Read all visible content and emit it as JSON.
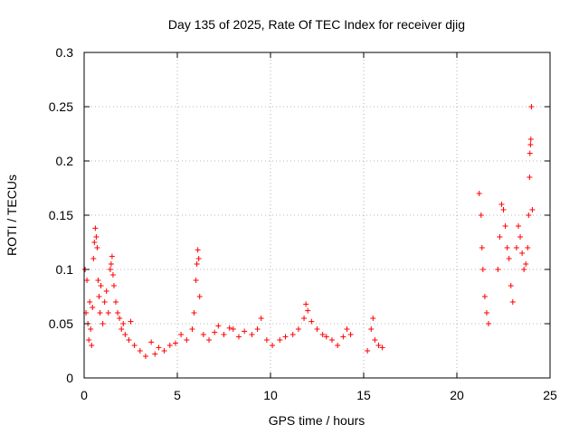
{
  "chart_data": {
    "type": "scatter",
    "title": "Day 135 of 2025, Rate Of TEC Index for receiver djig",
    "xlabel": "GPS time / hours",
    "ylabel": "ROTI / TECUs",
    "xlim": [
      0,
      25
    ],
    "ylim": [
      0,
      0.3
    ],
    "xticks": [
      0,
      5,
      10,
      15,
      20,
      25
    ],
    "xtick_labels": [
      "0",
      "5",
      "10",
      "15",
      "20",
      "25"
    ],
    "yticks": [
      0,
      0.05,
      0.1,
      0.15,
      0.2,
      0.25,
      0.3
    ],
    "ytick_labels": [
      "0",
      "0.05",
      "0.1",
      "0.15",
      "0.2",
      "0.25",
      "0.3"
    ],
    "grid": true,
    "marker": "plus",
    "color": "#ff0000",
    "series": [
      {
        "name": "ROTI",
        "points": [
          [
            0.05,
            0.1
          ],
          [
            0.1,
            0.06
          ],
          [
            0.15,
            0.09
          ],
          [
            0.2,
            0.05
          ],
          [
            0.25,
            0.035
          ],
          [
            0.3,
            0.07
          ],
          [
            0.35,
            0.045
          ],
          [
            0.4,
            0.03
          ],
          [
            0.45,
            0.065
          ],
          [
            0.5,
            0.11
          ],
          [
            0.55,
            0.125
          ],
          [
            0.6,
            0.138
          ],
          [
            0.65,
            0.13
          ],
          [
            0.7,
            0.12
          ],
          [
            0.75,
            0.09
          ],
          [
            0.8,
            0.075
          ],
          [
            0.85,
            0.06
          ],
          [
            0.9,
            0.085
          ],
          [
            1.0,
            0.05
          ],
          [
            1.1,
            0.07
          ],
          [
            1.2,
            0.08
          ],
          [
            1.3,
            0.06
          ],
          [
            1.4,
            0.1
          ],
          [
            1.45,
            0.105
          ],
          [
            1.5,
            0.112
          ],
          [
            1.55,
            0.095
          ],
          [
            1.6,
            0.085
          ],
          [
            1.7,
            0.07
          ],
          [
            1.8,
            0.06
          ],
          [
            1.9,
            0.055
          ],
          [
            2.0,
            0.045
          ],
          [
            2.1,
            0.05
          ],
          [
            2.2,
            0.04
          ],
          [
            2.4,
            0.035
          ],
          [
            2.5,
            0.052
          ],
          [
            2.7,
            0.03
          ],
          [
            3.0,
            0.025
          ],
          [
            3.3,
            0.02
          ],
          [
            3.6,
            0.033
          ],
          [
            3.8,
            0.022
          ],
          [
            4.0,
            0.028
          ],
          [
            4.3,
            0.025
          ],
          [
            4.6,
            0.03
          ],
          [
            4.9,
            0.032
          ],
          [
            5.2,
            0.04
          ],
          [
            5.5,
            0.035
          ],
          [
            5.8,
            0.045
          ],
          [
            5.9,
            0.06
          ],
          [
            6.0,
            0.09
          ],
          [
            6.05,
            0.105
          ],
          [
            6.1,
            0.118
          ],
          [
            6.15,
            0.11
          ],
          [
            6.2,
            0.075
          ],
          [
            6.4,
            0.04
          ],
          [
            6.7,
            0.035
          ],
          [
            7.0,
            0.042
          ],
          [
            7.2,
            0.048
          ],
          [
            7.5,
            0.04
          ],
          [
            7.8,
            0.046
          ],
          [
            8.0,
            0.045
          ],
          [
            8.3,
            0.038
          ],
          [
            8.6,
            0.043
          ],
          [
            9.0,
            0.04
          ],
          [
            9.3,
            0.045
          ],
          [
            9.5,
            0.055
          ],
          [
            9.8,
            0.035
          ],
          [
            10.1,
            0.03
          ],
          [
            10.5,
            0.035
          ],
          [
            10.8,
            0.038
          ],
          [
            11.2,
            0.04
          ],
          [
            11.5,
            0.045
          ],
          [
            11.8,
            0.055
          ],
          [
            11.9,
            0.068
          ],
          [
            12.0,
            0.062
          ],
          [
            12.2,
            0.052
          ],
          [
            12.5,
            0.045
          ],
          [
            12.8,
            0.04
          ],
          [
            13.0,
            0.038
          ],
          [
            13.3,
            0.035
          ],
          [
            13.6,
            0.03
          ],
          [
            13.9,
            0.038
          ],
          [
            14.1,
            0.045
          ],
          [
            14.3,
            0.04
          ],
          [
            15.2,
            0.025
          ],
          [
            15.4,
            0.045
          ],
          [
            15.5,
            0.055
          ],
          [
            15.6,
            0.035
          ],
          [
            15.8,
            0.03
          ],
          [
            16.0,
            0.028
          ],
          [
            21.2,
            0.17
          ],
          [
            21.3,
            0.15
          ],
          [
            21.35,
            0.12
          ],
          [
            21.4,
            0.1
          ],
          [
            21.5,
            0.075
          ],
          [
            21.6,
            0.06
          ],
          [
            21.7,
            0.05
          ],
          [
            22.2,
            0.1
          ],
          [
            22.3,
            0.13
          ],
          [
            22.4,
            0.16
          ],
          [
            22.5,
            0.155
          ],
          [
            22.6,
            0.14
          ],
          [
            22.7,
            0.12
          ],
          [
            22.8,
            0.11
          ],
          [
            22.9,
            0.085
          ],
          [
            23.0,
            0.07
          ],
          [
            23.2,
            0.12
          ],
          [
            23.3,
            0.14
          ],
          [
            23.4,
            0.13
          ],
          [
            23.5,
            0.115
          ],
          [
            23.6,
            0.1
          ],
          [
            23.7,
            0.105
          ],
          [
            23.8,
            0.12
          ],
          [
            23.85,
            0.15
          ],
          [
            23.9,
            0.185
          ],
          [
            23.92,
            0.207
          ],
          [
            23.95,
            0.215
          ],
          [
            23.97,
            0.22
          ],
          [
            24.0,
            0.25
          ],
          [
            24.05,
            0.155
          ]
        ]
      }
    ]
  }
}
